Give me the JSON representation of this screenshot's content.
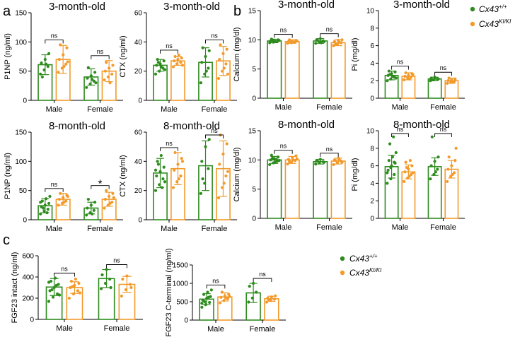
{
  "panel_letters": [
    "a",
    "b",
    "c"
  ],
  "legend": {
    "wt": {
      "base": "Cx43",
      "sup": "+/+",
      "color": "#2e8b1e"
    },
    "ki": {
      "base": "Cx43",
      "sup": "KI/KI",
      "color": "#f39a2b"
    }
  },
  "chart_data": [
    {
      "type": "bar",
      "title": "3-month-old",
      "ylabel": "P1NP (ng/ml)",
      "ylim": [
        0,
        150
      ],
      "yticks": [
        0,
        50,
        100,
        150
      ],
      "categories": [
        "Male",
        "Female"
      ],
      "series": [
        {
          "name": "Cx43+/+",
          "values": [
            61,
            40
          ],
          "err": [
            17,
            14
          ],
          "points": [
            [
              45,
              52,
              58,
              64,
              70,
              80,
              40,
              62
            ],
            [
              22,
              28,
              33,
              38,
              42,
              48,
              56,
              36,
              30
            ]
          ]
        },
        {
          "name": "Cx43KI/KI",
          "values": [
            70,
            50
          ],
          "err": [
            24,
            18
          ],
          "points": [
            [
              48,
              55,
              62,
              70,
              78,
              90,
              95,
              58,
              66
            ],
            [
              35,
              40,
              45,
              50,
              55,
              60,
              65,
              30
            ]
          ]
        }
      ],
      "sig": [
        "ns",
        "ns"
      ]
    },
    {
      "type": "bar",
      "title": "3-month-old",
      "ylabel": "CTX (ng/ml)",
      "ylim": [
        0,
        60
      ],
      "yticks": [
        0,
        20,
        40,
        60
      ],
      "categories": [
        "Male",
        "Female"
      ],
      "series": [
        {
          "name": "Cx43+/+",
          "values": [
            24,
            26
          ],
          "err": [
            4,
            10
          ],
          "points": [
            [
              18,
              20,
              22,
              24,
              25,
              27,
              28,
              23,
              21,
              26
            ],
            [
              12,
              18,
              22,
              26,
              30,
              34,
              36,
              20
            ]
          ]
        },
        {
          "name": "Cx43KI/KI",
          "values": [
            27,
            27
          ],
          "err": [
            3,
            10
          ],
          "points": [
            [
              23,
              25,
              26,
              27,
              28,
              29,
              30,
              31,
              24
            ],
            [
              15,
              20,
              25,
              28,
              32,
              35,
              38,
              22,
              18
            ]
          ]
        }
      ],
      "sig": [
        "ns",
        "ns"
      ]
    },
    {
      "type": "bar",
      "title": "3-month-old",
      "ylabel": "Calcium (mg/dl)",
      "ylim": [
        0,
        15
      ],
      "yticks": [
        0,
        5,
        10,
        15
      ],
      "categories": [
        "Male",
        "Female"
      ],
      "series": [
        {
          "name": "Cx43+/+",
          "values": [
            9.8,
            9.8
          ],
          "err": [
            0.3,
            0.4
          ],
          "points": [
            [
              9.5,
              9.6,
              9.7,
              9.8,
              9.9,
              10.0,
              10.1,
              9.7,
              9.9,
              10.0
            ],
            [
              9.4,
              9.6,
              9.8,
              10.0,
              10.2,
              9.7,
              9.9,
              9.5
            ]
          ]
        },
        {
          "name": "Cx43KI/KI",
          "values": [
            9.7,
            9.5
          ],
          "err": [
            0.3,
            0.5
          ],
          "points": [
            [
              9.4,
              9.5,
              9.6,
              9.7,
              9.8,
              9.9,
              10.0,
              9.6,
              9.8
            ],
            [
              9.0,
              9.3,
              9.5,
              9.7,
              9.9,
              10.0,
              9.2,
              9.6
            ]
          ]
        }
      ],
      "sig": [
        "ns",
        "ns"
      ]
    },
    {
      "type": "bar",
      "title": "3-month-old",
      "ylabel": "Pi (mg/dl)",
      "ylim": [
        0,
        10
      ],
      "yticks": [
        0,
        2,
        4,
        6,
        8,
        10
      ],
      "categories": [
        "Male",
        "Female"
      ],
      "series": [
        {
          "name": "Cx43+/+",
          "values": [
            2.6,
            2.2
          ],
          "err": [
            0.5,
            0.2
          ],
          "points": [
            [
              2.0,
              2.2,
              2.4,
              2.6,
              2.8,
              3.0,
              3.1,
              2.5,
              2.3,
              2.7
            ],
            [
              2.0,
              2.1,
              2.2,
              2.3,
              2.4,
              2.2,
              2.1
            ]
          ]
        },
        {
          "name": "Cx43KI/KI",
          "values": [
            2.5,
            2.0
          ],
          "err": [
            0.4,
            0.3
          ],
          "points": [
            [
              2.1,
              2.3,
              2.4,
              2.5,
              2.6,
              2.8,
              2.9,
              2.2,
              2.7
            ],
            [
              1.7,
              1.8,
              1.9,
              2.0,
              2.1,
              2.2,
              2.3,
              1.9
            ]
          ]
        }
      ],
      "sig": [
        "ns",
        "ns"
      ]
    },
    {
      "type": "bar",
      "title": "8-month-old",
      "ylabel": "P1NP (ng/ml)",
      "ylim": [
        0,
        150
      ],
      "yticks": [
        0,
        50,
        100,
        150
      ],
      "categories": [
        "Male",
        "Female"
      ],
      "series": [
        {
          "name": "Cx43+/+",
          "values": [
            24,
            20
          ],
          "err": [
            12,
            10
          ],
          "points": [
            [
              10,
              15,
              18,
              22,
              25,
              28,
              32,
              36,
              40,
              20,
              12,
              30
            ],
            [
              8,
              12,
              16,
              20,
              25,
              30,
              35,
              10
            ]
          ]
        },
        {
          "name": "Cx43KI/KI",
          "values": [
            35,
            35
          ],
          "err": [
            10,
            12
          ],
          "points": [
            [
              25,
              28,
              32,
              35,
              38,
              42,
              45,
              30,
              40
            ],
            [
              20,
              25,
              30,
              35,
              40,
              45,
              50,
              28,
              38
            ]
          ]
        }
      ],
      "sig": [
        "ns",
        "*"
      ]
    },
    {
      "type": "bar",
      "title": "8-month-old",
      "ylabel": "CTX (ng/ml)",
      "ylim": [
        0,
        60
      ],
      "yticks": [
        0,
        20,
        40,
        60
      ],
      "categories": [
        "Male",
        "Female"
      ],
      "series": [
        {
          "name": "Cx43+/+",
          "values": [
            32,
            37
          ],
          "err": [
            10,
            17
          ],
          "points": [
            [
              20,
              24,
              28,
              30,
              33,
              36,
              40,
              44,
              26,
              38,
              22,
              34
            ],
            [
              18,
              25,
              35,
              40,
              50,
              55,
              28
            ]
          ]
        },
        {
          "name": "Cx43KI/KI",
          "values": [
            35,
            35
          ],
          "err": [
            11,
            19
          ],
          "points": [
            [
              22,
              26,
              30,
              34,
              38,
              42,
              46,
              28,
              40
            ],
            [
              15,
              22,
              30,
              38,
              45,
              52,
              58,
              25,
              33
            ]
          ]
        }
      ],
      "sig": [
        "ns",
        "ns"
      ]
    },
    {
      "type": "bar",
      "title": "8-month-old",
      "ylabel": "Calcium (mg/dl)",
      "ylim": [
        0,
        15
      ],
      "yticks": [
        0,
        5,
        10,
        15
      ],
      "categories": [
        "Male",
        "Female"
      ],
      "series": [
        {
          "name": "Cx43+/+",
          "values": [
            10.0,
            9.7
          ],
          "err": [
            0.6,
            0.4
          ],
          "points": [
            [
              9.2,
              9.5,
              9.8,
              10.0,
              10.2,
              10.5,
              10.8,
              9.6,
              9.9,
              10.3,
              10.1
            ],
            [
              9.3,
              9.5,
              9.7,
              9.9,
              10.1,
              9.6,
              9.8
            ]
          ]
        },
        {
          "name": "Cx43KI/KI",
          "values": [
            10.0,
            9.8
          ],
          "err": [
            0.6,
            0.5
          ],
          "points": [
            [
              9.3,
              9.6,
              9.9,
              10.1,
              10.4,
              10.7,
              9.7,
              10.0,
              10.2
            ],
            [
              9.2,
              9.5,
              9.8,
              10.0,
              10.3,
              9.6,
              9.9,
              10.1
            ]
          ]
        }
      ],
      "sig": [
        "ns",
        "ns"
      ]
    },
    {
      "type": "bar",
      "title": "8-month-old",
      "ylabel": "Pi (mg/dl)",
      "ylim": [
        0,
        10
      ],
      "yticks": [
        0,
        2,
        4,
        6,
        8,
        10
      ],
      "categories": [
        "Male",
        "Female"
      ],
      "series": [
        {
          "name": "Cx43+/+",
          "values": [
            5.9,
            5.9
          ],
          "err": [
            1.3,
            1.0
          ],
          "points": [
            [
              4.0,
              4.5,
              5.0,
              5.5,
              6.0,
              6.3,
              6.6,
              7.0,
              7.5,
              8.5,
              9.3,
              5.2,
              5.8,
              6.4
            ],
            [
              4.5,
              5.0,
              5.6,
              6.0,
              6.5,
              7.0,
              9.3,
              5.3
            ]
          ]
        },
        {
          "name": "Cx43KI/KI",
          "values": [
            5.3,
            5.6
          ],
          "err": [
            0.8,
            1.0
          ],
          "points": [
            [
              4.2,
              4.6,
              5.0,
              5.3,
              5.6,
              6.0,
              6.4,
              4.8,
              5.2,
              5.8,
              6.6
            ],
            [
              4.2,
              4.8,
              5.2,
              5.6,
              6.0,
              6.6,
              7.0,
              5.0,
              8.0
            ]
          ]
        }
      ],
      "sig": [
        "ns",
        "ns"
      ]
    },
    {
      "type": "bar",
      "title": "",
      "ylabel": "FGF23 intact (ng/ml)",
      "ylim": [
        0,
        600
      ],
      "yticks": [
        0,
        200,
        400,
        600
      ],
      "categories": [
        "Male",
        "Female"
      ],
      "series": [
        {
          "name": "Cx43+/+",
          "values": [
            305,
            385
          ],
          "err": [
            80,
            85
          ],
          "points": [
            [
              170,
              210,
              240,
              270,
              300,
              330,
              360,
              390,
              230,
              280,
              320,
              350
            ],
            [
              290,
              340,
              380,
              420,
              470,
              300
            ]
          ]
        },
        {
          "name": "Cx43KI/KI",
          "values": [
            300,
            330
          ],
          "err": [
            55,
            75
          ],
          "points": [
            [
              200,
              240,
              270,
              300,
              320,
              340,
              360,
              380,
              250,
              310
            ],
            [
              220,
              280,
              330,
              380,
              410,
              300
            ]
          ]
        }
      ],
      "sig": [
        "ns",
        "ns"
      ]
    },
    {
      "type": "bar",
      "title": "",
      "ylabel": "FGF23 C-terminal (ng/ml)",
      "ylim": [
        0,
        1500
      ],
      "yticks": [
        0,
        500,
        1000,
        1500
      ],
      "categories": [
        "Male",
        "Female"
      ],
      "series": [
        {
          "name": "Cx43+/+",
          "values": [
            570,
            740
          ],
          "err": [
            150,
            260
          ],
          "points": [
            [
              350,
              420,
              480,
              540,
              590,
              640,
              700,
              760,
              820,
              500,
              620,
              460
            ],
            [
              490,
              600,
              760,
              920,
              1000
            ]
          ]
        },
        {
          "name": "Cx43KI/KI",
          "values": [
            630,
            580
          ],
          "err": [
            110,
            70
          ],
          "points": [
            [
              470,
              530,
              580,
              620,
              660,
              700,
              760,
              600,
              640
            ],
            [
              490,
              530,
              570,
              600,
              630,
              660,
              560
            ]
          ]
        }
      ],
      "sig": [
        "ns",
        "ns"
      ]
    }
  ]
}
